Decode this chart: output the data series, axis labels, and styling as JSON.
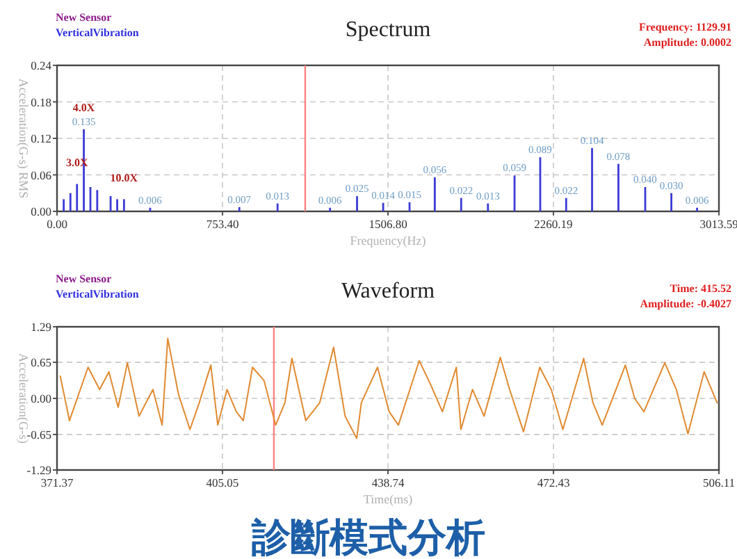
{
  "chart_data": [
    {
      "type": "bar",
      "title": "Spectrum",
      "xlabel": "Frequency(Hz)",
      "ylabel": "Acceleration(G-s) RMS",
      "annotations": [
        "New Sensor",
        "VerticalVibration",
        "Frequency: 1129.91",
        "Amplitude: 0.0002",
        {
          "text": "4.0X",
          "x": 122,
          "y": 0.135
        },
        {
          "text": "3.0X",
          "x": 91,
          "y": 0.045
        },
        {
          "text": "10.0X",
          "x": 305,
          "y": 0.02
        }
      ],
      "x": [
        30.5,
        61,
        91,
        122,
        152,
        183,
        244,
        274,
        305,
        424,
        830,
        1004,
        1243,
        1366,
        1485,
        1605,
        1720,
        1840,
        1962,
        2083,
        2200,
        2318,
        2436,
        2556,
        2678,
        2797,
        2914
      ],
      "series": [
        {
          "color": "#3b3bd6",
          "values": [
            0.02,
            0.03,
            0.045,
            0.135,
            0.04,
            0.035,
            0.025,
            0.02,
            0.02,
            0.006,
            0.007,
            0.013,
            0.006,
            0.025,
            0.014,
            0.015,
            0.056,
            0.022,
            0.013,
            0.059,
            0.089,
            0.022,
            0.104,
            0.078,
            0.04,
            0.03,
            0.006
          ],
          "value_labels": [
            null,
            null,
            null,
            "0.135",
            null,
            null,
            null,
            null,
            null,
            "0.006",
            "0.007",
            "0.013",
            "0.006",
            "0.025",
            "0.014",
            "0.015",
            "0.056",
            "0.022",
            "0.013",
            "0.059",
            "0.089",
            "0.022",
            "0.104",
            "0.078",
            "0.040",
            "0.030",
            "0.006"
          ]
        }
      ],
      "xlim": [
        0,
        3013.59
      ],
      "ylim": [
        0,
        0.24
      ],
      "xticks": [
        {
          "value": 0,
          "label": "0.00"
        },
        {
          "value": 753.4,
          "label": "753.40"
        },
        {
          "value": 1506.8,
          "label": "1506.80"
        },
        2260.19,
        3013.59
      ],
      "yticks": [
        {
          "value": 0,
          "label": "0.00"
        },
        0.06,
        0.12,
        0.18,
        0.24
      ],
      "grid": true,
      "ref_lines": [
        {
          "axis": "x",
          "value": 1129.91,
          "label": null,
          "color": "#ff8080"
        }
      ]
    },
    {
      "type": "line",
      "title": "Waveform",
      "xlabel": "Time(ms)",
      "ylabel": "Acceleration(G-s)",
      "annotations": [
        "New Sensor",
        "VerticalVibration",
        "Time: 415.52",
        "Amplitude: -0.4027",
        "診斷模式分析"
      ],
      "x": [
        372.03,
        373.91,
        377.69,
        380.04,
        381.93,
        383.82,
        385.7,
        388.06,
        390.89,
        392.77,
        393.91,
        396.08,
        398.43,
        400.32,
        402.68,
        404.09,
        405.98,
        407.86,
        409.28,
        411.16,
        413.52,
        415.88,
        417.76,
        419.18,
        422.01,
        424.84,
        427.67,
        430.02,
        432.38,
        433.32,
        436.62,
        438.98,
        440.86,
        445.11,
        447.47,
        449.82,
        452.65,
        453.59,
        455.95,
        458.31,
        461.61,
        463.5,
        466.33,
        469.63,
        471.98,
        474.34,
        478.58,
        480.47,
        482.36,
        487.07,
        488.96,
        490.84,
        495.09,
        497.44,
        499.8,
        503.1,
        505.74
      ],
      "series": [
        {
          "color": "#e08a30",
          "values": [
            0.4,
            -0.4,
            0.56,
            0.16,
            0.48,
            -0.16,
            0.64,
            -0.32,
            0.16,
            -0.48,
            1.08,
            0.08,
            -0.56,
            -0.08,
            0.6,
            -0.48,
            0.16,
            -0.24,
            -0.4,
            0.56,
            0.32,
            -0.48,
            -0.08,
            0.72,
            -0.4,
            -0.08,
            0.92,
            -0.32,
            -0.72,
            -0.08,
            0.56,
            -0.24,
            -0.48,
            0.68,
            0.24,
            -0.24,
            0.56,
            -0.56,
            0.16,
            -0.32,
            0.74,
            0.16,
            -0.6,
            0.56,
            0.16,
            -0.56,
            0.72,
            -0.08,
            -0.48,
            0.6,
            0,
            -0.24,
            0.64,
            0.16,
            -0.64,
            0.48,
            -0.08
          ]
        }
      ],
      "xlim": [
        371.37,
        506.11
      ],
      "ylim": [
        -1.29,
        1.29
      ],
      "xticks": [
        371.37,
        405.05,
        438.74,
        472.43,
        506.11
      ],
      "yticks": [
        -1.29,
        -0.65,
        {
          "value": 0,
          "label": "0.00"
        },
        0.65,
        1.29
      ],
      "grid": true,
      "ref_lines": [
        {
          "axis": "x",
          "value": 415.52,
          "label": null,
          "color": "#ff8080"
        }
      ]
    }
  ]
}
